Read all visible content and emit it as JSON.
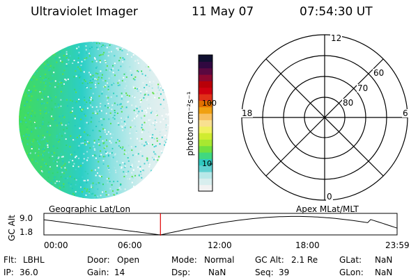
{
  "header": {
    "instrument": "Ultraviolet Imager",
    "date": "11 May 07",
    "time": "07:54:30 UT"
  },
  "colorbar": {
    "unit_label": "photon cm⁻²s⁻¹",
    "tick_labels": [
      "100",
      "10"
    ],
    "colors": [
      "#f2f2f2",
      "#d8eeee",
      "#b8e8e8",
      "#60d0d0",
      "#30c8c0",
      "#40d880",
      "#70e040",
      "#a8e830",
      "#d0ec30",
      "#f0f060",
      "#f8e090",
      "#f8c060",
      "#f0a010",
      "#e07000",
      "#e03018",
      "#d00010",
      "#b80008",
      "#8c0830",
      "#5a0840",
      "#300840",
      "#101030"
    ]
  },
  "polar": {
    "lat_labels": [
      "60",
      "70",
      "80"
    ],
    "mlt_labels": {
      "top": "12",
      "bottom": "0",
      "left": "18",
      "right": "6"
    }
  },
  "timeline": {
    "y_axis_label": "GC Alt",
    "y_ticks": [
      "9.0",
      "1.8"
    ],
    "left_caption": "Geographic Lat/Lon",
    "right_caption": "Apex MLat/MLT",
    "x_ticks": [
      "00:00",
      "06:00",
      "12:00",
      "18:00",
      "23:59"
    ],
    "current_time_fraction": 0.33
  },
  "info": {
    "row1": [
      {
        "label": "Flt:",
        "value": "LBHL"
      },
      {
        "label": "Door:",
        "value": "Open"
      },
      {
        "label": "Mode:",
        "value": "Normal"
      },
      {
        "label": "GC Alt:",
        "value": "2.1 Re"
      },
      {
        "label": "GLat:",
        "value": "NaN"
      }
    ],
    "row2": [
      {
        "label": "IP:",
        "value": "36.0"
      },
      {
        "label": "Gain:",
        "value": "14"
      },
      {
        "label": "Dsp:",
        "value": "NaN"
      },
      {
        "label": "Seq:",
        "value": "39"
      },
      {
        "label": "GLon:",
        "value": "NaN"
      }
    ]
  }
}
